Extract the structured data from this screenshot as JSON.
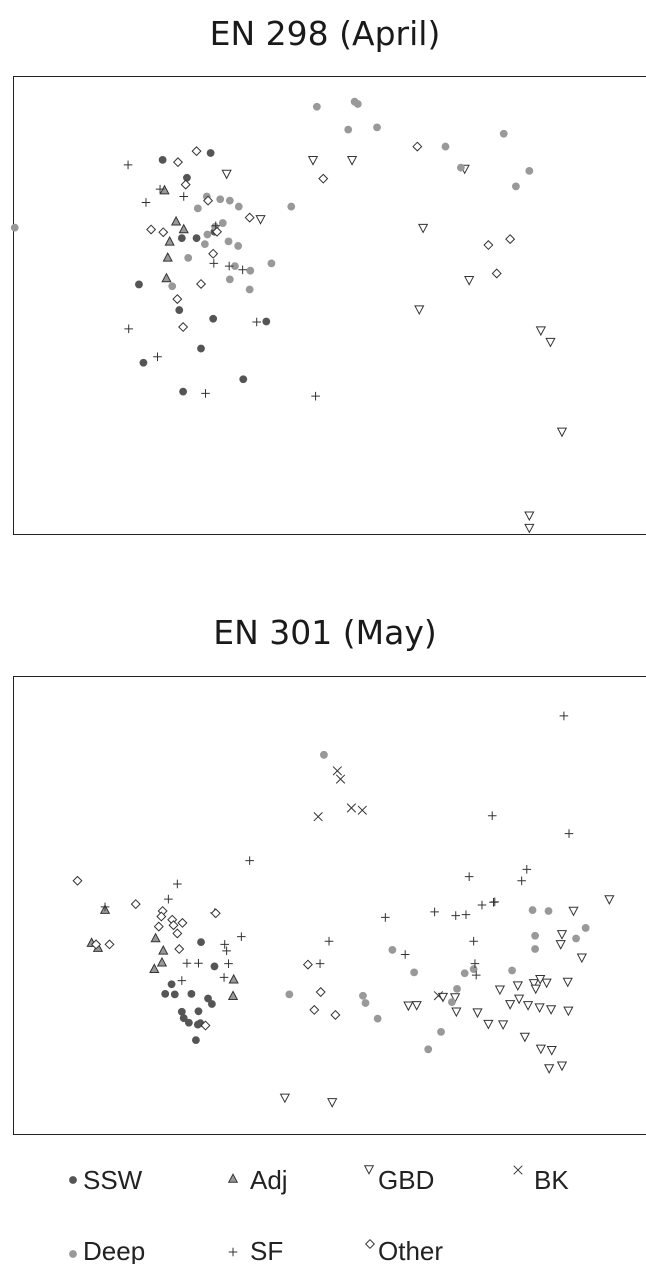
{
  "chart_data": [
    {
      "type": "scatter",
      "title": "EN 298 (April)",
      "xlabel": "",
      "ylabel": "",
      "xlim": [
        0,
        100
      ],
      "ylim": [
        0,
        100
      ],
      "grid": false,
      "legend": "bottom",
      "series": [
        {
          "name": "SSW",
          "marker": "filled-circle",
          "color": "#555555",
          "x": [
            23.3,
            30.8,
            27.1,
            26.3,
            28.6,
            31.4,
            19.6,
            25.9,
            31.2,
            29.3,
            26.5,
            39.5,
            35.9,
            20.3
          ],
          "y": [
            81.8,
            83.3,
            77.9,
            64.7,
            64.7,
            66.1,
            54.6,
            49.0,
            47.1,
            40.6,
            31.2,
            46.5,
            33.9,
            37.5
          ]
        },
        {
          "name": "Adj",
          "marker": "filled-triangle",
          "color": "#999999",
          "x": [
            23.6,
            25.4,
            26.6,
            24.4,
            24.1,
            23.9
          ],
          "y": [
            75.1,
            68.3,
            66.6,
            63.9,
            60.4,
            55.9
          ]
        },
        {
          "name": "GBD",
          "marker": "open-triangle",
          "color": "#333333",
          "x": [
            33.3,
            38.6,
            46.8,
            52.9,
            70.5,
            64.0,
            71.2,
            82.4,
            63.4,
            83.9,
            85.7,
            80.6,
            80.6
          ],
          "y": [
            78.8,
            68.9,
            81.8,
            81.8,
            79.9,
            67.0,
            55.6,
            44.6,
            49.2,
            42.1,
            22.5,
            4.2,
            1.5
          ]
        },
        {
          "name": "BK",
          "marker": "cross",
          "color": "#333333",
          "x": [],
          "y": []
        },
        {
          "name": "Deep",
          "marker": "filled-circle",
          "color": "#999999",
          "x": [
            47.4,
            53.3,
            53.8,
            52.3,
            56.8,
            43.4,
            28.8,
            30.2,
            32.3,
            33.8,
            35.2,
            32.7,
            31.5,
            30.3,
            33.6,
            35.1,
            29.9,
            27.3,
            40.3,
            37.0,
            33.8,
            24.8,
            36.9,
            34.6,
            76.6,
            80.6,
            78.5,
            69.9,
            67.5,
            0.2
          ],
          "y": [
            93.4,
            94.5,
            94.0,
            88.4,
            88.9,
            71.6,
            71.2,
            73.8,
            73.2,
            72.9,
            71.6,
            68.0,
            67.2,
            65.5,
            64.0,
            63.0,
            63.4,
            60.4,
            59.2,
            57.6,
            55.7,
            54.2,
            53.5,
            58.6,
            87.5,
            79.4,
            76.0,
            80.1,
            84.7,
            67.0
          ]
        },
        {
          "name": "SF",
          "marker": "plus",
          "color": "#333333",
          "x": [
            17.9,
            22.9,
            20.7,
            26.6,
            31.6,
            33.7,
            31.3,
            35.8,
            38.0,
            22.5,
            18.0,
            30.0,
            47.2
          ],
          "y": [
            80.7,
            75.4,
            72.5,
            73.8,
            67.4,
            58.6,
            59.2,
            57.8,
            46.4,
            38.8,
            44.9,
            30.8,
            30.2
          ]
        },
        {
          "name": "Other",
          "marker": "open-diamond",
          "color": "#333333",
          "x": [
            28.6,
            25.7,
            26.9,
            30.4,
            36.9,
            21.5,
            23.4,
            31.8,
            31.2,
            29.3,
            25.6,
            26.5,
            63.1,
            48.4,
            74.2,
            77.6,
            75.5
          ],
          "y": [
            83.7,
            81.3,
            76.4,
            72.9,
            69.2,
            66.6,
            66.0,
            66.1,
            61.3,
            54.7,
            51.4,
            45.3,
            84.7,
            77.7,
            63.2,
            64.5,
            57.0
          ]
        }
      ]
    },
    {
      "type": "scatter",
      "title": "EN 301 (May)",
      "xlabel": "",
      "ylabel": "",
      "xlim": [
        0,
        100
      ],
      "ylim": [
        0,
        100
      ],
      "grid": false,
      "legend": "bottom",
      "series": [
        {
          "name": "SSW",
          "marker": "filled-circle",
          "color": "#555555",
          "x": [
            29.3,
            31.4,
            24.7,
            23.7,
            25.2,
            27.8,
            30.4,
            26.3,
            28.9,
            31.0,
            26.6,
            29.2,
            28.8,
            27.4,
            28.5
          ],
          "y": [
            42.0,
            36.7,
            32.8,
            30.7,
            30.6,
            30.7,
            29.7,
            26.8,
            26.9,
            28.5,
            25.4,
            24.3,
            24.0,
            24.4,
            20.6
          ]
        },
        {
          "name": "Adj",
          "marker": "filled-triangle",
          "color": "#999999",
          "x": [
            14.3,
            12.2,
            13.2,
            22.2,
            23.4,
            23.2,
            22.0,
            34.4,
            34.3
          ],
          "y": [
            49.0,
            41.8,
            40.7,
            42.8,
            40.1,
            37.5,
            36.1,
            33.8,
            30.2
          ]
        },
        {
          "name": "GBD",
          "marker": "open-triangle",
          "color": "#333333",
          "x": [
            93.1,
            87.5,
            85.5,
            85.7,
            88.8,
            76.0,
            67.1,
            69.0,
            78.8,
            81.3,
            83.3,
            82.3,
            86.6,
            81.6,
            63.0,
            61.7,
            69.2,
            77.6,
            79.0,
            80.4,
            82.2,
            84.0,
            86.7,
            72.5,
            74.2,
            76.5,
            79.9,
            84.1,
            82.4,
            85.7,
            83.7,
            42.4,
            49.8
          ],
          "y": [
            51.4,
            48.9,
            41.6,
            43.8,
            38.7,
            31.7,
            30.1,
            30.0,
            32.6,
            33.1,
            33.2,
            34.0,
            33.4,
            31.9,
            28.3,
            28.2,
            26.9,
            28.5,
            29.7,
            28.3,
            27.8,
            27.4,
            27.1,
            26.7,
            24.2,
            24.1,
            21.4,
            18.5,
            18.8,
            15.1,
            14.5,
            8.1,
            7.1
          ]
        },
        {
          "name": "BK",
          "marker": "cross",
          "color": "#333333",
          "x": [
            50.6,
            51.1,
            52.8,
            54.5,
            47.6,
            66.4
          ],
          "y": [
            79.4,
            77.6,
            71.3,
            70.8,
            69.4,
            30.3
          ]
        },
        {
          "name": "Deep",
          "marker": "filled-circle",
          "color": "#999999",
          "x": [
            48.5,
            81.1,
            83.6,
            89.4,
            87.9,
            81.5,
            81.5,
            59.2,
            62.6,
            71.9,
            77.9,
            70.5,
            69.3,
            68.5,
            66.8,
            43.1,
            54.6,
            55.0,
            56.9,
            64.8
          ],
          "y": [
            82.9,
            49.0,
            48.8,
            45.1,
            42.8,
            43.4,
            40.5,
            40.3,
            35.4,
            36.1,
            35.8,
            35.2,
            31.8,
            28.9,
            22.4,
            30.6,
            30.3,
            28.7,
            25.3,
            18.6
          ]
        },
        {
          "name": "SF",
          "marker": "plus",
          "color": "#333333",
          "x": [
            86.0,
            74.8,
            86.8,
            25.6,
            36.9,
            24.2,
            14.3,
            71.2,
            79.4,
            80.2,
            65.8,
            69.1,
            70.7,
            73.2,
            75.2,
            58.1,
            75.0,
            31.4,
            49.3,
            35.6,
            61.2,
            72.1,
            72.3,
            71.9,
            33.0,
            33.3,
            33.6,
            27.1,
            28.9,
            26.3,
            32.9,
            47.9
          ],
          "y": [
            91.4,
            69.6,
            65.7,
            54.7,
            59.8,
            51.4,
            49.7,
            56.3,
            55.4,
            57.9,
            48.6,
            47.8,
            48.0,
            50.1,
            50.8,
            47.4,
            50.7,
            48.4,
            42.2,
            43.2,
            39.3,
            37.3,
            34.8,
            42.2,
            41.5,
            40.1,
            37.3,
            37.4,
            37.4,
            33.6,
            34.3,
            37.3
          ]
        },
        {
          "name": "Other",
          "marker": "open-diamond",
          "color": "#333333",
          "x": [
            10.0,
            19.1,
            23.3,
            23.1,
            24.8,
            22.7,
            26.4,
            25.0,
            25.6,
            25.9,
            31.6,
            46.0,
            48.0,
            50.3,
            47.0,
            15.0,
            12.9,
            30.0
          ],
          "y": [
            55.4,
            50.3,
            48.8,
            47.6,
            46.9,
            45.4,
            46.2,
            45.7,
            43.9,
            40.5,
            48.3,
            37.1,
            31.1,
            26.1,
            27.2,
            41.5,
            41.5,
            23.8
          ]
        }
      ]
    }
  ],
  "legend": [
    {
      "name": "SSW",
      "marker": "filled-circle",
      "color": "#555555"
    },
    {
      "name": "Adj",
      "marker": "filled-triangle",
      "color": "#999999"
    },
    {
      "name": "GBD",
      "marker": "open-triangle",
      "color": "#333333"
    },
    {
      "name": "BK",
      "marker": "cross",
      "color": "#333333"
    },
    {
      "name": "Deep",
      "marker": "filled-circle",
      "color": "#999999"
    },
    {
      "name": "SF",
      "marker": "plus",
      "color": "#333333"
    },
    {
      "name": "Other",
      "marker": "open-diamond",
      "color": "#333333"
    }
  ]
}
